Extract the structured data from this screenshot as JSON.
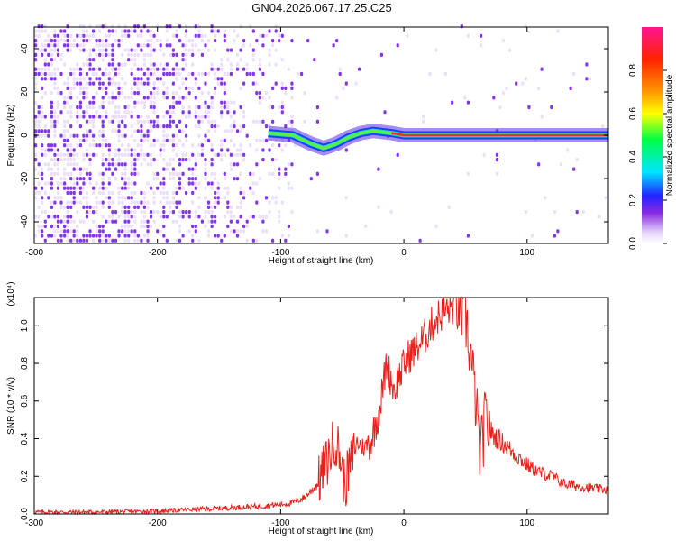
{
  "figure_title": "GN04.2026.067.17.25.C25",
  "colors": {
    "snr_line": "#e8201c",
    "spectrogram_low": "#e2d2f6",
    "spectrogram_mid": "#6f14e6",
    "ridge": "#e83030"
  },
  "chart_data": [
    {
      "type": "heatmap",
      "title": "",
      "xlabel": "Height of straight line (km)",
      "ylabel": "Frequency (Hz)",
      "xlim": [
        -300,
        166
      ],
      "ylim": [
        -50,
        50
      ],
      "x_ticks": [
        -300,
        -200,
        -100,
        0,
        100
      ],
      "y_ticks": [
        -40,
        -20,
        0,
        20,
        40
      ],
      "x_tick_labels": [
        "-300",
        "-200",
        "-100",
        "0",
        "100"
      ],
      "y_tick_labels": [
        "-40",
        "-20",
        "0",
        "20",
        "40"
      ],
      "colorbar": {
        "label": "Normalized spectral amplitude",
        "range": [
          0,
          1
        ],
        "ticks": [
          0.0,
          0.2,
          0.4,
          0.6,
          0.8
        ],
        "tick_labels": [
          "0.0",
          "0.2",
          "0.4",
          "0.6",
          "0.8"
        ]
      },
      "ridge_frequency": [
        {
          "x": -110,
          "y": 1
        },
        {
          "x": -90,
          "y": 0
        },
        {
          "x": -75,
          "y": -4
        },
        {
          "x": -65,
          "y": -6
        },
        {
          "x": -55,
          "y": -4
        },
        {
          "x": -45,
          "y": -1
        },
        {
          "x": -35,
          "y": 1
        },
        {
          "x": -25,
          "y": 2
        },
        {
          "x": -10,
          "y": 1
        },
        {
          "x": 0,
          "y": 0
        },
        {
          "x": 50,
          "y": 0
        },
        {
          "x": 100,
          "y": 0
        },
        {
          "x": 166,
          "y": 0
        }
      ]
    },
    {
      "type": "line",
      "title": "",
      "xlabel": "Height of straight line (km)",
      "ylabel": "SNR (10 * v/v)",
      "y_scale_note": "(x10⁴)",
      "xlim": [
        -300,
        166
      ],
      "ylim": [
        0,
        1.15
      ],
      "x_ticks": [
        -300,
        -200,
        -100,
        0,
        100
      ],
      "x_tick_labels": [
        "-300",
        "-200",
        "-100",
        "0",
        "100"
      ],
      "y_ticks": [
        0.0,
        0.2,
        0.4,
        0.6,
        0.8,
        1.0
      ],
      "y_tick_labels": [
        "0.0",
        "0.2",
        "0.4",
        "0.6",
        "0.8",
        "1.0"
      ],
      "series": [
        {
          "x": [
            -300,
            -250,
            -200,
            -150,
            -120,
            -100,
            -90,
            -80,
            -70,
            -62,
            -56,
            -52,
            -48,
            -44,
            -38,
            -32,
            -26,
            -20,
            -14,
            -8,
            -2,
            4,
            10,
            16,
            22,
            28,
            34,
            40,
            46,
            50,
            54,
            58,
            62,
            66,
            72,
            80,
            90,
            100,
            110,
            120,
            130,
            140,
            150,
            160,
            166
          ],
          "y": [
            0.01,
            0.01,
            0.015,
            0.03,
            0.04,
            0.05,
            0.06,
            0.09,
            0.16,
            0.28,
            0.4,
            0.32,
            0.15,
            0.25,
            0.38,
            0.35,
            0.4,
            0.55,
            0.8,
            0.66,
            0.76,
            0.84,
            0.88,
            0.93,
            1.0,
            1.05,
            1.08,
            1.1,
            1.08,
            1.05,
            0.85,
            0.62,
            0.3,
            0.5,
            0.42,
            0.38,
            0.32,
            0.26,
            0.22,
            0.2,
            0.16,
            0.15,
            0.14,
            0.13,
            0.13
          ]
        }
      ]
    }
  ]
}
